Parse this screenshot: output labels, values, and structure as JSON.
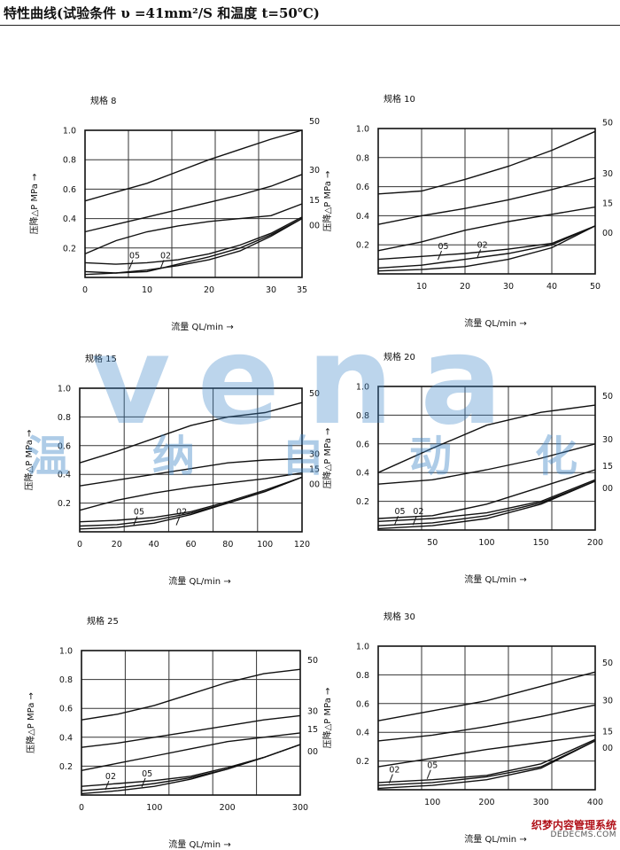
{
  "page": {
    "title": "特性曲线(试验条件 υ =41mm²/S 和温度 t=50℃)",
    "watermark_latin": "vena",
    "watermark_cn": [
      "温",
      "纳",
      "自",
      "动",
      "化"
    ],
    "stamp_cn": "织梦内容管理系统",
    "stamp_en": "DEDECMS.COM"
  },
  "chart_data": [
    {
      "type": "line",
      "title": "规格 8",
      "xlabel": "流量 QL/min →",
      "ylabel": "压降△P MPa →",
      "xlim": [
        0,
        35
      ],
      "ylim": [
        0,
        1.0
      ],
      "xticks": [
        0,
        10,
        20,
        30,
        35
      ],
      "yticks": [
        0.2,
        0.4,
        0.6,
        0.8,
        1.0
      ],
      "grid": true,
      "series": [
        {
          "name": "50",
          "x": [
            0,
            5,
            10,
            15,
            20,
            25,
            30,
            35
          ],
          "y": [
            0.52,
            0.58,
            0.64,
            0.72,
            0.8,
            0.87,
            0.94,
            1.0
          ]
        },
        {
          "name": "30",
          "x": [
            0,
            5,
            10,
            15,
            20,
            25,
            30,
            35
          ],
          "y": [
            0.31,
            0.36,
            0.41,
            0.46,
            0.51,
            0.56,
            0.62,
            0.7
          ]
        },
        {
          "name": "15",
          "x": [
            0,
            5,
            10,
            15,
            20,
            25,
            30,
            35
          ],
          "y": [
            0.16,
            0.25,
            0.31,
            0.35,
            0.38,
            0.4,
            0.42,
            0.5
          ]
        },
        {
          "name": "00",
          "x": [
            0,
            5,
            10,
            15,
            20,
            25,
            30,
            35
          ],
          "y": [
            0.02,
            0.03,
            0.05,
            0.08,
            0.12,
            0.18,
            0.28,
            0.4
          ]
        },
        {
          "name": "05",
          "x": [
            0,
            5,
            10,
            15,
            20,
            25,
            30,
            35
          ],
          "y": [
            0.1,
            0.09,
            0.1,
            0.12,
            0.16,
            0.22,
            0.3,
            0.41
          ]
        },
        {
          "name": "02",
          "x": [
            0,
            5,
            10,
            15,
            20,
            25,
            30,
            35
          ],
          "y": [
            0.04,
            0.03,
            0.04,
            0.09,
            0.14,
            0.2,
            0.29,
            0.4
          ]
        }
      ],
      "inline_labels": [
        {
          "text": "05",
          "x": 8,
          "y": 0.13
        },
        {
          "text": "02",
          "x": 13,
          "y": 0.13
        }
      ]
    },
    {
      "type": "line",
      "title": "规格 10",
      "xlabel": "流量 QL/min →",
      "ylabel": "压降△P MPa →",
      "xlim": [
        0,
        50
      ],
      "ylim": [
        0,
        1.0
      ],
      "xticks": [
        10,
        20,
        30,
        40,
        50
      ],
      "yticks": [
        0.2,
        0.4,
        0.6,
        0.8,
        1.0
      ],
      "grid": true,
      "series": [
        {
          "name": "50",
          "x": [
            0,
            10,
            20,
            30,
            40,
            50
          ],
          "y": [
            0.55,
            0.57,
            0.65,
            0.74,
            0.85,
            0.98
          ]
        },
        {
          "name": "30",
          "x": [
            0,
            10,
            20,
            30,
            40,
            50
          ],
          "y": [
            0.34,
            0.4,
            0.45,
            0.51,
            0.58,
            0.66
          ]
        },
        {
          "name": "15",
          "x": [
            0,
            10,
            20,
            30,
            40,
            50
          ],
          "y": [
            0.16,
            0.22,
            0.3,
            0.36,
            0.41,
            0.46
          ]
        },
        {
          "name": "00",
          "x": [
            0,
            10,
            20,
            30,
            40,
            50
          ],
          "y": [
            0.02,
            0.03,
            0.05,
            0.1,
            0.18,
            0.33
          ]
        },
        {
          "name": "05",
          "x": [
            0,
            10,
            20,
            30,
            40,
            50
          ],
          "y": [
            0.1,
            0.12,
            0.14,
            0.17,
            0.21,
            0.33
          ]
        },
        {
          "name": "02",
          "x": [
            0,
            10,
            20,
            30,
            40,
            50
          ],
          "y": [
            0.04,
            0.06,
            0.1,
            0.14,
            0.2,
            0.33
          ]
        }
      ],
      "inline_labels": [
        {
          "text": "05",
          "x": 15,
          "y": 0.17
        },
        {
          "text": "02",
          "x": 24,
          "y": 0.18
        }
      ]
    },
    {
      "type": "line",
      "title": "规格 15",
      "xlabel": "流量 QL/min →",
      "ylabel": "压降△P MPa →",
      "xlim": [
        0,
        120
      ],
      "ylim": [
        0,
        1.0
      ],
      "xticks": [
        0,
        20,
        40,
        60,
        80,
        100,
        120
      ],
      "yticks": [
        0.2,
        0.4,
        0.6,
        0.8,
        1.0
      ],
      "grid": true,
      "series": [
        {
          "name": "50",
          "x": [
            0,
            20,
            40,
            60,
            80,
            100,
            120
          ],
          "y": [
            0.48,
            0.56,
            0.65,
            0.74,
            0.8,
            0.83,
            0.9
          ]
        },
        {
          "name": "30",
          "x": [
            0,
            20,
            40,
            60,
            80,
            100,
            120
          ],
          "y": [
            0.32,
            0.36,
            0.4,
            0.44,
            0.48,
            0.5,
            0.51
          ]
        },
        {
          "name": "15",
          "x": [
            0,
            20,
            40,
            60,
            80,
            100,
            120
          ],
          "y": [
            0.15,
            0.22,
            0.27,
            0.31,
            0.34,
            0.37,
            0.41
          ]
        },
        {
          "name": "00",
          "x": [
            0,
            20,
            40,
            60,
            80,
            100,
            120
          ],
          "y": [
            0.02,
            0.03,
            0.06,
            0.12,
            0.2,
            0.28,
            0.38
          ]
        },
        {
          "name": "05",
          "x": [
            0,
            20,
            40,
            60,
            80,
            100,
            120
          ],
          "y": [
            0.07,
            0.08,
            0.1,
            0.14,
            0.21,
            0.29,
            0.38
          ]
        },
        {
          "name": "02",
          "x": [
            0,
            20,
            40,
            60,
            80,
            100,
            120
          ],
          "y": [
            0.04,
            0.05,
            0.08,
            0.13,
            0.2,
            0.28,
            0.38
          ]
        }
      ],
      "inline_labels": [
        {
          "text": "05",
          "x": 32,
          "y": 0.12
        },
        {
          "text": "02",
          "x": 55,
          "y": 0.12
        }
      ]
    },
    {
      "type": "line",
      "title": "规格 20",
      "xlabel": "流量 QL/min →",
      "ylabel": "压降△P MPa →",
      "xlim": [
        0,
        200
      ],
      "ylim": [
        0,
        1.0
      ],
      "xticks": [
        50,
        100,
        150,
        200
      ],
      "yticks": [
        0.2,
        0.4,
        0.6,
        0.8,
        1.0
      ],
      "grid": true,
      "series": [
        {
          "name": "50",
          "x": [
            0,
            50,
            100,
            150,
            200
          ],
          "y": [
            0.4,
            0.57,
            0.73,
            0.82,
            0.87
          ]
        },
        {
          "name": "30",
          "x": [
            0,
            50,
            100,
            150,
            200
          ],
          "y": [
            0.32,
            0.35,
            0.42,
            0.5,
            0.6
          ]
        },
        {
          "name": "15",
          "x": [
            0,
            50,
            100,
            150,
            200
          ],
          "y": [
            0.08,
            0.1,
            0.18,
            0.3,
            0.42
          ]
        },
        {
          "name": "00",
          "x": [
            0,
            50,
            100,
            150,
            200
          ],
          "y": [
            0.01,
            0.03,
            0.08,
            0.18,
            0.34
          ]
        },
        {
          "name": "05",
          "x": [
            0,
            50,
            100,
            150,
            200
          ],
          "y": [
            0.06,
            0.08,
            0.12,
            0.2,
            0.35
          ]
        },
        {
          "name": "02",
          "x": [
            0,
            50,
            100,
            150,
            200
          ],
          "y": [
            0.03,
            0.05,
            0.1,
            0.19,
            0.34
          ]
        }
      ],
      "inline_labels": [
        {
          "text": "05",
          "x": 20,
          "y": 0.11
        },
        {
          "text": "02",
          "x": 37,
          "y": 0.11
        }
      ]
    },
    {
      "type": "line",
      "title": "规格 25",
      "xlabel": "流量 QL/min →",
      "ylabel": "压降△P MPa →",
      "xlim": [
        0,
        300
      ],
      "ylim": [
        0,
        1.0
      ],
      "xticks": [
        0,
        100,
        200,
        300
      ],
      "yticks": [
        0.2,
        0.4,
        0.6,
        0.8,
        1.0
      ],
      "grid": true,
      "series": [
        {
          "name": "50",
          "x": [
            0,
            50,
            100,
            150,
            200,
            250,
            300
          ],
          "y": [
            0.52,
            0.56,
            0.62,
            0.7,
            0.78,
            0.84,
            0.87
          ]
        },
        {
          "name": "30",
          "x": [
            0,
            50,
            100,
            150,
            200,
            250,
            300
          ],
          "y": [
            0.33,
            0.36,
            0.4,
            0.44,
            0.48,
            0.52,
            0.55
          ]
        },
        {
          "name": "15",
          "x": [
            0,
            50,
            100,
            150,
            200,
            250,
            300
          ],
          "y": [
            0.17,
            0.22,
            0.27,
            0.32,
            0.37,
            0.4,
            0.43
          ]
        },
        {
          "name": "00",
          "x": [
            0,
            50,
            100,
            150,
            200,
            250,
            300
          ],
          "y": [
            0.01,
            0.03,
            0.06,
            0.11,
            0.18,
            0.26,
            0.35
          ]
        },
        {
          "name": "05",
          "x": [
            0,
            50,
            100,
            150,
            200,
            250,
            300
          ],
          "y": [
            0.06,
            0.08,
            0.1,
            0.13,
            0.19,
            0.26,
            0.35
          ]
        },
        {
          "name": "02",
          "x": [
            0,
            50,
            100,
            150,
            200,
            250,
            300
          ],
          "y": [
            0.03,
            0.05,
            0.08,
            0.12,
            0.18,
            0.26,
            0.35
          ]
        }
      ],
      "inline_labels": [
        {
          "text": "02",
          "x": 40,
          "y": 0.11
        },
        {
          "text": "05",
          "x": 90,
          "y": 0.13
        }
      ]
    },
    {
      "type": "line",
      "title": "规格 30",
      "xlabel": "流量 QL/min →",
      "ylabel": "压降△P MPa →",
      "xlim": [
        0,
        400
      ],
      "ylim": [
        0,
        1.0
      ],
      "xticks": [
        100,
        200,
        300,
        400
      ],
      "yticks": [
        0.2,
        0.4,
        0.6,
        0.8,
        1.0
      ],
      "grid": true,
      "series": [
        {
          "name": "50",
          "x": [
            0,
            100,
            200,
            300,
            400
          ],
          "y": [
            0.48,
            0.55,
            0.62,
            0.72,
            0.82
          ]
        },
        {
          "name": "30",
          "x": [
            0,
            100,
            200,
            300,
            400
          ],
          "y": [
            0.34,
            0.38,
            0.44,
            0.51,
            0.59
          ]
        },
        {
          "name": "15",
          "x": [
            0,
            100,
            200,
            300,
            400
          ],
          "y": [
            0.16,
            0.22,
            0.28,
            0.33,
            0.38
          ]
        },
        {
          "name": "00",
          "x": [
            0,
            100,
            200,
            300,
            400
          ],
          "y": [
            0.01,
            0.03,
            0.07,
            0.15,
            0.34
          ]
        },
        {
          "name": "05",
          "x": [
            0,
            100,
            200,
            300,
            400
          ],
          "y": [
            0.05,
            0.07,
            0.1,
            0.18,
            0.35
          ]
        },
        {
          "name": "02",
          "x": [
            0,
            100,
            200,
            300,
            400
          ],
          "y": [
            0.03,
            0.05,
            0.09,
            0.16,
            0.34
          ]
        }
      ],
      "inline_labels": [
        {
          "text": "02",
          "x": 30,
          "y": 0.12
        },
        {
          "text": "05",
          "x": 100,
          "y": 0.15
        }
      ]
    }
  ]
}
